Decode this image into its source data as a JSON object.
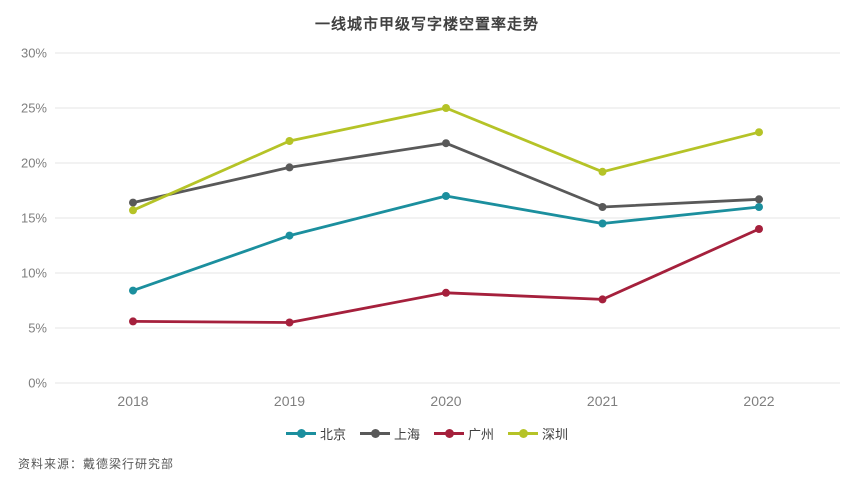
{
  "chart_data": {
    "type": "line",
    "title": "一线城市甲级写字楼空置率走势",
    "categories": [
      "2018",
      "2019",
      "2020",
      "2021",
      "2022"
    ],
    "series": [
      {
        "id": "beijing",
        "name": "北京",
        "color": "#1b8f9e",
        "values": [
          8.4,
          13.4,
          17.0,
          14.5,
          16.0
        ]
      },
      {
        "id": "shanghai",
        "name": "上海",
        "color": "#595959",
        "values": [
          16.4,
          19.6,
          21.8,
          16.0,
          16.7
        ]
      },
      {
        "id": "guangzhou",
        "name": "广州",
        "color": "#a5203c",
        "values": [
          5.6,
          5.5,
          8.2,
          7.6,
          14.0
        ]
      },
      {
        "id": "shenzhen",
        "name": "深圳",
        "color": "#b5c327",
        "values": [
          15.7,
          22.0,
          25.0,
          19.2,
          22.8
        ]
      }
    ],
    "xlabel": "",
    "ylabel": "",
    "ylim": [
      0,
      30
    ],
    "ytick_step": 5,
    "ytick_labels": [
      "0%",
      "5%",
      "10%",
      "15%",
      "20%",
      "25%",
      "30%"
    ],
    "grid": "horizontal-only",
    "legend_position": "bottom"
  },
  "footer": {
    "source": "资料来源：戴德梁行研究部"
  },
  "style": {
    "background": "#ffffff",
    "gridline_color": "#e4e4e4",
    "axis_label_color": "#7f7f7f",
    "title_color": "#404040",
    "legend_text_color": "#404040",
    "source_text_color": "#595959"
  }
}
